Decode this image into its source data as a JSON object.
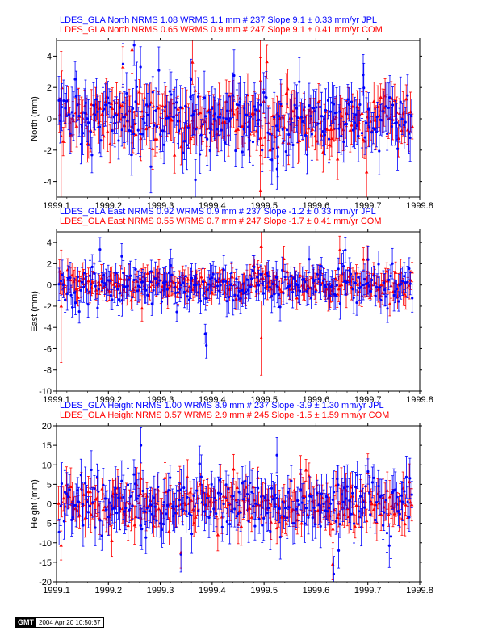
{
  "colors": {
    "jpl": "#0000ff",
    "com": "#ff0000",
    "axis": "#000000"
  },
  "stamp": {
    "logo": "GMT",
    "timestamp": "2004 Apr 20 10:50:37"
  },
  "chart_data": [
    {
      "type": "scatter",
      "ylabel": "North (mm)",
      "xlim": [
        1999.1,
        1999.8
      ],
      "ylim": [
        -5,
        5
      ],
      "xticks": [
        "1999.1",
        "1999.2",
        "1999.3",
        "1999.4",
        "1999.5",
        "1999.6",
        "1999.7",
        "1999.8"
      ],
      "yticks": [
        "-4",
        "-2",
        "0",
        "2",
        "4"
      ],
      "ytick_values": [
        -4,
        -2,
        0,
        2,
        4
      ],
      "grid": false,
      "header": [
        {
          "series": "JPL",
          "text": "LDES_GLA North NRMS 1.08 WRMS  1.1 mm # 237 Slope    9.1 ±  0.33 mm/yr JPL"
        },
        {
          "series": "COM",
          "text": "LDES_GLA North NRMS 0.65 WRMS  0.9 mm # 247 Slope    9.1 ±  0.41 mm/yr COM"
        }
      ],
      "series": [
        {
          "name": "JPL",
          "marker": "circle",
          "count": 237,
          "xstart": 1999.105,
          "xend": 1999.785,
          "rms": 1.1,
          "err": 1.3,
          "outliers": [
            [
              1999.2283,
              3.5,
              1.3
            ],
            [
              1999.2496,
              4.7,
              1.3
            ],
            [
              1999.262,
              3.3,
              1.3
            ],
            [
              1999.3594,
              2.5,
              1.3
            ],
            [
              1999.3677,
              -3.9,
              1.3
            ],
            [
              1999.396,
              -2.0,
              1.3
            ],
            [
              1999.5252,
              -3.2,
              1.3
            ],
            [
              1999.5264,
              -2.4,
              1.3
            ],
            [
              1999.6911,
              2.8,
              1.3
            ],
            [
              1999.2448,
              -2.3,
              1.3
            ]
          ]
        },
        {
          "name": "COM",
          "marker": "triangle",
          "count": 247,
          "xstart": 1999.105,
          "xend": 1999.785,
          "rms": 0.9,
          "err": 1.1,
          "outliers": [
            [
              1999.109,
              -1.1,
              5.4
            ],
            [
              1999.228,
              3.3,
              1.3
            ],
            [
              1999.2456,
              4.4,
              1.5
            ],
            [
              1999.3619,
              3.6,
              1.4
            ],
            [
              1999.4928,
              -4.6,
              10.0
            ],
            [
              1999.4928,
              2.4,
              1.5
            ],
            [
              1999.6976,
              -3.4,
              2.0
            ],
            [
              1999.5364,
              -1.5,
              1.5
            ]
          ]
        }
      ]
    },
    {
      "type": "scatter",
      "ylabel": "East (mm)",
      "xlim": [
        1999.1,
        1999.8
      ],
      "ylim": [
        -10,
        5
      ],
      "xticks": [
        "1999.1",
        "1999.2",
        "1999.3",
        "1999.4",
        "1999.5",
        "1999.6",
        "1999.7",
        "1999.8"
      ],
      "yticks": [
        "-10",
        "-8",
        "-6",
        "-4",
        "-2",
        "0",
        "2",
        "4"
      ],
      "ytick_values": [
        -10,
        -8,
        -6,
        -4,
        -2,
        0,
        2,
        4
      ],
      "grid": false,
      "header": [
        {
          "series": "JPL",
          "text": "LDES_GLA East NRMS 0.92 WRMS  0.9 mm # 237 Slope   -1.2 ±  0.33 mm/yr JPL"
        },
        {
          "series": "COM",
          "text": "LDES_GLA East NRMS 0.55 WRMS  0.7 mm # 247 Slope   -1.7 ±  0.41 mm/yr COM"
        }
      ],
      "series": [
        {
          "name": "JPL",
          "marker": "circle",
          "count": 237,
          "xstart": 1999.105,
          "xend": 1999.785,
          "rms": 0.9,
          "err": 1.2,
          "outliers": [
            [
              1999.3866,
              -4.6,
              0.9
            ],
            [
              1999.3888,
              -5.7,
              1.2
            ],
            [
              1999.2258,
              2.7,
              1.2
            ],
            [
              1999.6566,
              3.3,
              1.2
            ],
            [
              1999.7004,
              2.4,
              1.2
            ]
          ]
        },
        {
          "name": "COM",
          "marker": "triangle",
          "count": 247,
          "xstart": 1999.105,
          "xend": 1999.785,
          "rms": 0.7,
          "err": 1.0,
          "outliers": [
            [
              1999.109,
              -2.0,
              5.3
            ],
            [
              1999.2648,
              -2.2,
              1.2
            ],
            [
              1999.4946,
              3.6,
              1.5
            ],
            [
              1999.4946,
              -5.0,
              3.5
            ],
            [
              1999.6458,
              3.3,
              1.3
            ],
            [
              1999.6992,
              2.4,
              1.3
            ]
          ]
        }
      ]
    },
    {
      "type": "scatter",
      "ylabel": "Height (mm)",
      "xlim": [
        1999.1,
        1999.8
      ],
      "ylim": [
        -20,
        20
      ],
      "xticks": [
        "1999.1",
        "1999.2",
        "1999.3",
        "1999.4",
        "1999.5",
        "1999.6",
        "1999.7",
        "1999.8"
      ],
      "yticks": [
        "-20",
        "-15",
        "-10",
        "-5",
        "0",
        "5",
        "10",
        "15",
        "20"
      ],
      "ytick_values": [
        -20,
        -15,
        -10,
        -5,
        0,
        5,
        10,
        15,
        20
      ],
      "grid": false,
      "header": [
        {
          "series": "JPL",
          "text": "LDES_GLA Height NRMS 1.00 WRMS  3.9 mm # 237 Slope   -3.9 ±  1.30 mm/yr JPL"
        },
        {
          "series": "COM",
          "text": "LDES_GLA Height NRMS 0.57 WRMS  2.9 mm # 245 Slope   -1.5 ±  1.59 mm/yr COM"
        }
      ],
      "series": [
        {
          "name": "JPL",
          "marker": "circle",
          "count": 237,
          "xstart": 1999.105,
          "xend": 1999.785,
          "rms": 3.9,
          "err": 4.5,
          "outliers": [
            [
              1999.2627,
              15.0,
              4.5
            ],
            [
              1999.6343,
              -18.0,
              4.5
            ],
            [
              1999.3398,
              -13.0,
              4.5
            ],
            [
              1999.6438,
              -12.0,
              4.5
            ],
            [
              1999.5248,
              12.5,
              4.5
            ]
          ]
        },
        {
          "name": "COM",
          "marker": "triangle",
          "count": 245,
          "xstart": 1999.105,
          "xend": 1999.785,
          "rms": 2.9,
          "err": 3.8,
          "outliers": [
            [
              1999.2627,
              6.5,
              4.0
            ],
            [
              1999.6323,
              -15.5,
              4.0
            ],
            [
              1999.3398,
              -12.5,
              4.0
            ],
            [
              1999.2066,
              -9.5,
              4.0
            ]
          ]
        }
      ]
    }
  ]
}
